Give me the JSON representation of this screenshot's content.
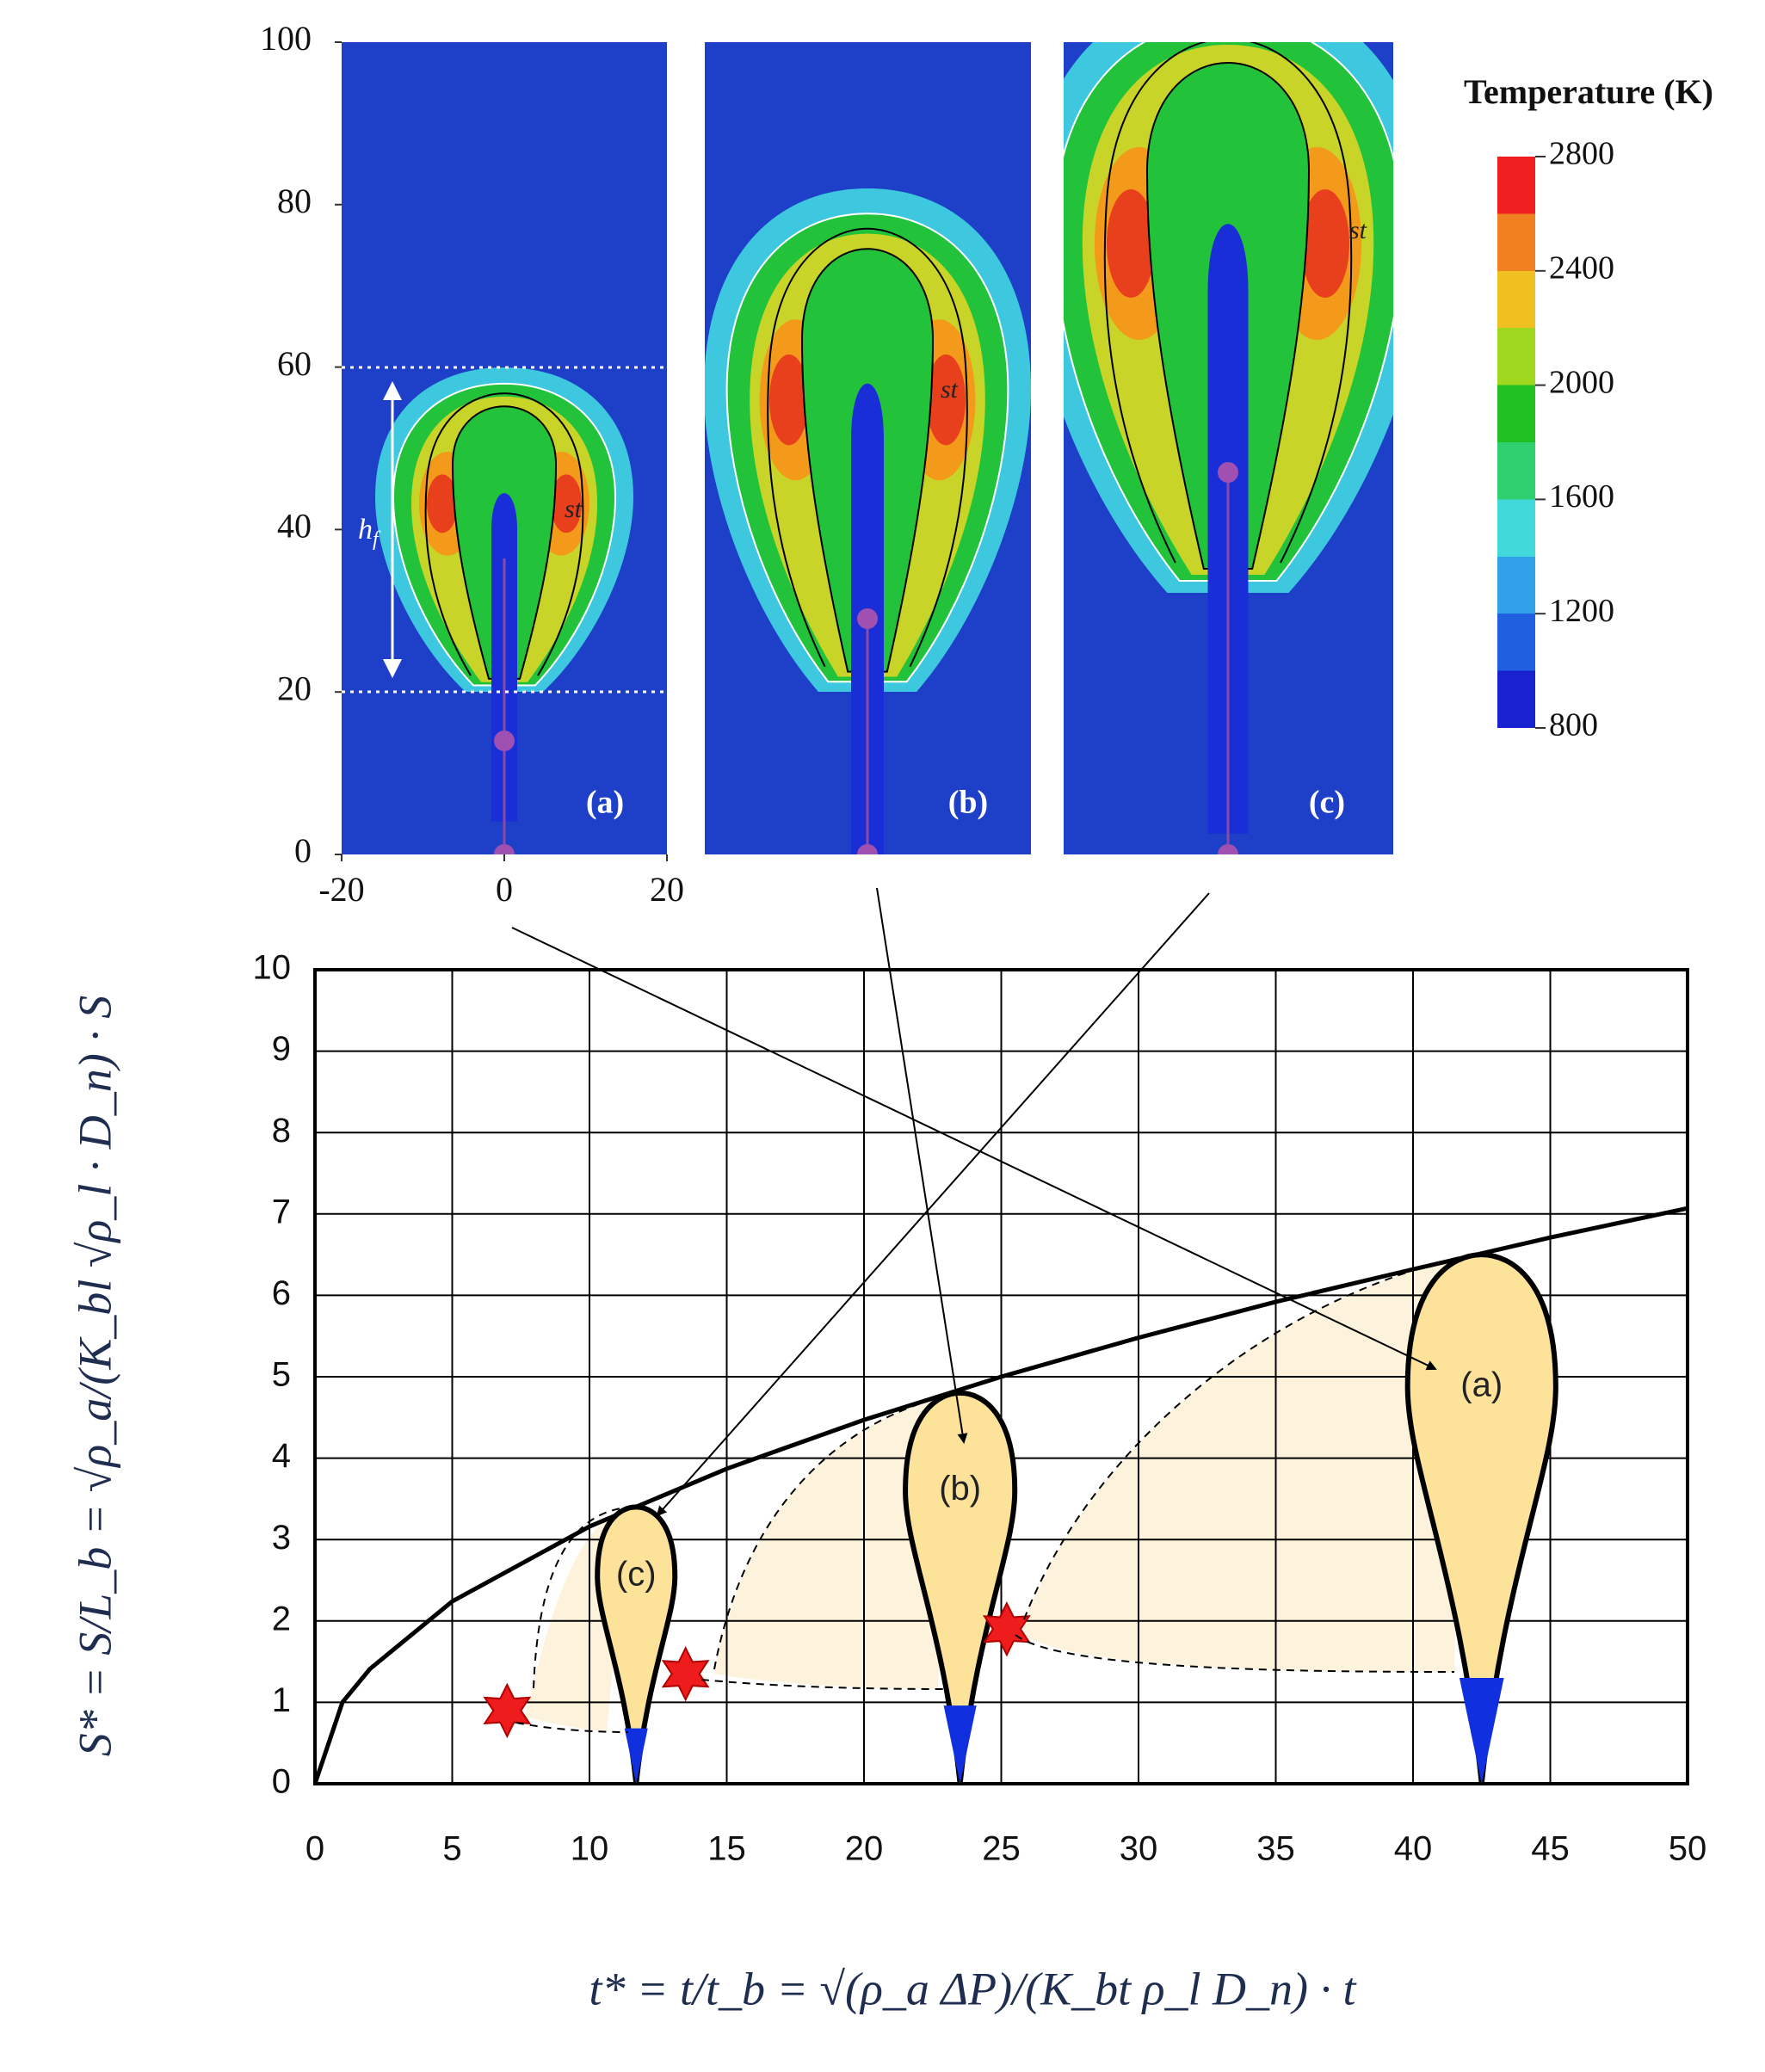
{
  "chart_data": [
    {
      "type": "contour",
      "panels": [
        {
          "label": "(a)"
        },
        {
          "label": "(b)"
        },
        {
          "label": "(c)"
        }
      ],
      "st_label": "st",
      "hf": {
        "base": "h",
        "sub": "f"
      },
      "xlim": [
        -20,
        20
      ],
      "ylim": [
        0,
        100
      ],
      "xticks": [
        -20,
        0,
        20
      ],
      "yticks": [
        0,
        20,
        40,
        60,
        80,
        100
      ],
      "colorbar": {
        "title": "Temperature (K)",
        "lim": [
          800,
          2800
        ],
        "ticks": [
          800,
          1200,
          1600,
          2000,
          2400,
          2800
        ]
      }
    },
    {
      "type": "line",
      "xlabel": "t* = t/t_b = √(ρ_a ΔP)/(K_bt ρ_l D_n) · t",
      "ylabel": "S* = S/L_b = √ρ_a/(K_bl √ρ_l · D_n) · S",
      "x": [
        0,
        1,
        2,
        5,
        10,
        15,
        20,
        25,
        30,
        35,
        40,
        45,
        50
      ],
      "series": [
        {
          "color": "#000000",
          "values": [
            0,
            1,
            1.41,
            2.24,
            3.16,
            3.87,
            4.47,
            5,
            5.48,
            5.92,
            6.32,
            6.71,
            7.07
          ]
        }
      ],
      "scatter": {
        "x": [
          7,
          13.5,
          25.2
        ],
        "y": [
          0.9,
          1.35,
          1.9
        ],
        "color": "#ee1c1c"
      },
      "droplets": [
        {
          "label": "(c)",
          "x": 11.7,
          "top": 3.4
        },
        {
          "label": "(b)",
          "x": 23.5,
          "top": 4.8
        },
        {
          "label": "(a)",
          "x": 42.5,
          "top": 6.5
        }
      ],
      "xlim": [
        0,
        50
      ],
      "ylim": [
        0,
        10
      ],
      "xticks": [
        0,
        5,
        10,
        15,
        20,
        25,
        30,
        35,
        40,
        45,
        50
      ],
      "yticks": [
        0,
        1,
        2,
        3,
        4,
        5,
        6,
        7,
        8,
        9,
        10
      ],
      "grid": true
    }
  ]
}
